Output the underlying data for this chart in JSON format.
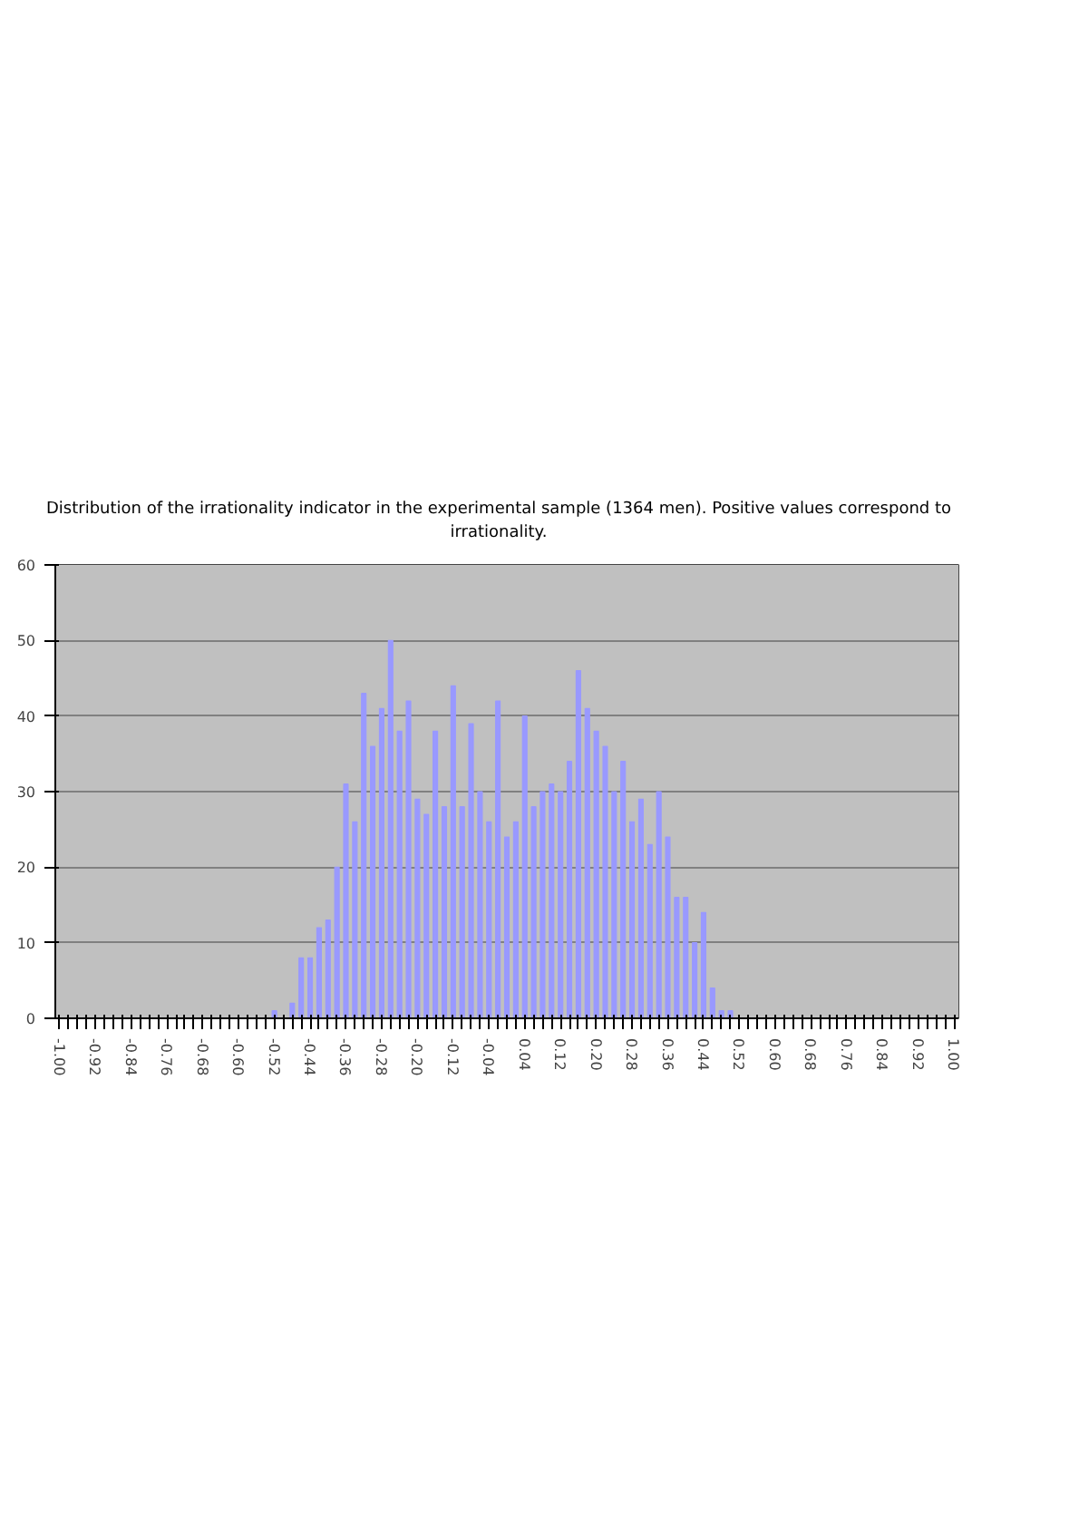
{
  "chart_data": {
    "type": "bar",
    "title": "Distribution of the irrationality indicator in the experimental sample (1364 men). Positive values correspond to irrationality.",
    "categories": [
      "-1.00",
      null,
      null,
      null,
      "-0.92",
      null,
      null,
      null,
      "-0.84",
      null,
      null,
      null,
      "-0.76",
      null,
      null,
      null,
      "-0.68",
      null,
      null,
      null,
      "-0.60",
      null,
      null,
      null,
      "-0.52",
      null,
      null,
      null,
      "-0.44",
      null,
      null,
      null,
      "-0.36",
      null,
      null,
      null,
      "-0.28",
      null,
      null,
      null,
      "-0.20",
      null,
      null,
      null,
      "-0.12",
      null,
      null,
      null,
      "-0.04",
      null,
      null,
      null,
      "0.04",
      null,
      null,
      null,
      "0.12",
      null,
      null,
      null,
      "0.20",
      null,
      null,
      null,
      "0.28",
      null,
      null,
      null,
      "0.36",
      null,
      null,
      null,
      "0.44",
      null,
      null,
      null,
      "0.52",
      null,
      null,
      null,
      "0.60",
      null,
      null,
      null,
      "0.68",
      null,
      null,
      null,
      "0.76",
      null,
      null,
      null,
      "0.84",
      null,
      null,
      null,
      "0.92",
      null,
      null,
      null,
      "1.00"
    ],
    "values": [
      0,
      0,
      0,
      0,
      0,
      0,
      0,
      0,
      0,
      0,
      0,
      0,
      0,
      0,
      0,
      0,
      0,
      0,
      0,
      0,
      0,
      0,
      0,
      0,
      1,
      0,
      2,
      8,
      8,
      12,
      13,
      20,
      31,
      26,
      43,
      36,
      41,
      50,
      38,
      42,
      29,
      27,
      38,
      28,
      44,
      28,
      39,
      30,
      26,
      42,
      24,
      26,
      40,
      28,
      30,
      31,
      30,
      34,
      46,
      41,
      38,
      36,
      30,
      34,
      26,
      29,
      23,
      30,
      24,
      16,
      16,
      10,
      14,
      4,
      1,
      1,
      0,
      0,
      0,
      0,
      0,
      0,
      0,
      0,
      0,
      0,
      0,
      0,
      0,
      0,
      0,
      0,
      0,
      0,
      0,
      0,
      0,
      0,
      0,
      0,
      0
    ],
    "color": "#9999ff",
    "ylim": [
      0,
      60
    ],
    "yticks": [
      0,
      10,
      20,
      30,
      40,
      50,
      60
    ],
    "grid": "y"
  }
}
